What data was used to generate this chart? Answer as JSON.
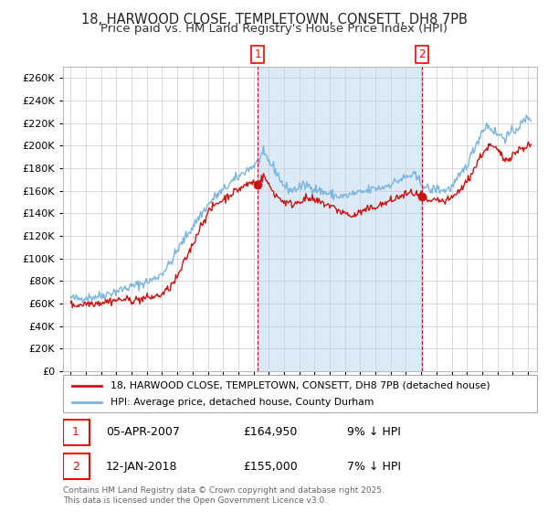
{
  "title": "18, HARWOOD CLOSE, TEMPLETOWN, CONSETT, DH8 7PB",
  "subtitle": "Price paid vs. HM Land Registry's House Price Index (HPI)",
  "legend_line1": "18, HARWOOD CLOSE, TEMPLETOWN, CONSETT, DH8 7PB (detached house)",
  "legend_line2": "HPI: Average price, detached house, County Durham",
  "annotation1_date": "05-APR-2007",
  "annotation1_price": "£164,950",
  "annotation1_hpi": "9% ↓ HPI",
  "annotation2_date": "12-JAN-2018",
  "annotation2_price": "£155,000",
  "annotation2_hpi": "7% ↓ HPI",
  "vline1_year": 2007.27,
  "vline2_year": 2018.04,
  "marker1_val": 164950,
  "marker2_val": 155000,
  "footer": "Contains HM Land Registry data © Crown copyright and database right 2025.\nThis data is licensed under the Open Government Licence v3.0.",
  "hpi_color": "#7ab4e0",
  "price_color": "#cc1111",
  "bg_shaded_color": "#daeaf7",
  "grid_color": "#cccccc",
  "ylim_min": 0,
  "ylim_max": 270000,
  "xstart": 1995,
  "xend": 2025,
  "title_fontsize": 10.5,
  "subtitle_fontsize": 9.5
}
